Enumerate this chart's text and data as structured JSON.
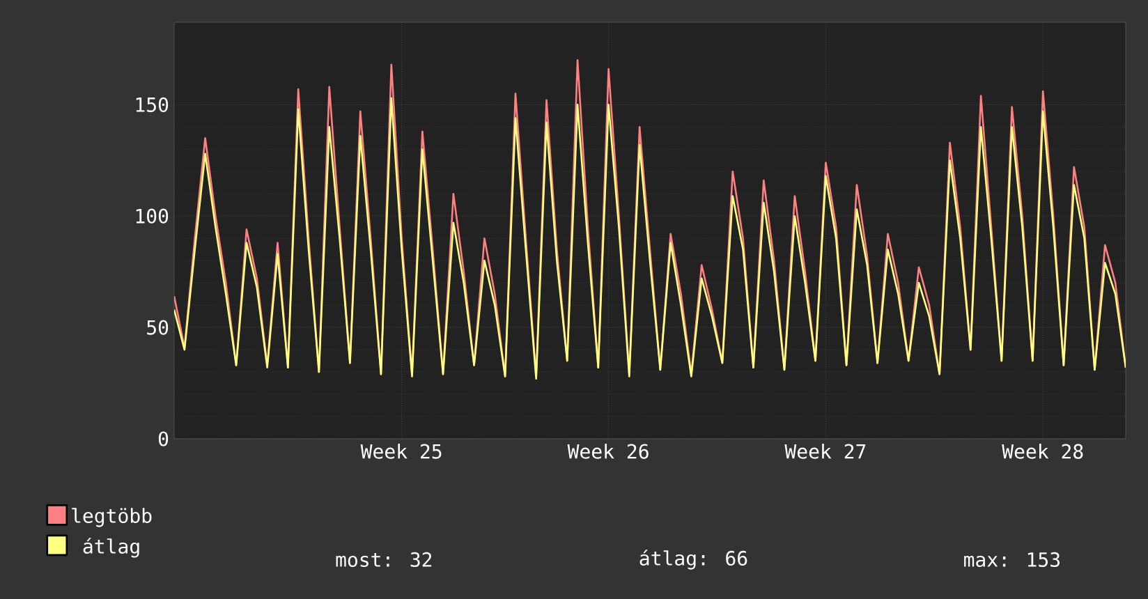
{
  "chart_data": {
    "type": "line",
    "categories": [
      null,
      null,
      null,
      null,
      null,
      null,
      null,
      null,
      null,
      null,
      null,
      null,
      null,
      null,
      null,
      null,
      null,
      null,
      null,
      null,
      null,
      null,
      "Week 25",
      null,
      null,
      null,
      null,
      null,
      null,
      null,
      null,
      null,
      null,
      null,
      null,
      null,
      null,
      null,
      null,
      null,
      null,
      null,
      "Week 26",
      null,
      null,
      null,
      null,
      null,
      null,
      null,
      null,
      null,
      null,
      null,
      null,
      null,
      null,
      null,
      null,
      null,
      null,
      null,
      null,
      "Week 27",
      null,
      null,
      null,
      null,
      null,
      null,
      null,
      null,
      null,
      null,
      null,
      null,
      null,
      null,
      null,
      null,
      null,
      null,
      null,
      null,
      "Week 28",
      null,
      null,
      null,
      null,
      null,
      null,
      null,
      null
    ],
    "series": [
      {
        "name": "legtöbb",
        "color": "#ff8080",
        "values": [
          64,
          41,
          90,
          135,
          100,
          70,
          33,
          94,
          72,
          33,
          88,
          32,
          157,
          90,
          30,
          158,
          95,
          34,
          147,
          90,
          29,
          168,
          90,
          29,
          138,
          85,
          29,
          110,
          75,
          33,
          90,
          65,
          28,
          155,
          90,
          28,
          152,
          85,
          35,
          170,
          95,
          32,
          166,
          100,
          29,
          140,
          85,
          31,
          92,
          65,
          29,
          78,
          58,
          34,
          120,
          90,
          32,
          116,
          80,
          31,
          109,
          75,
          35,
          124,
          95,
          33,
          114,
          82,
          34,
          92,
          70,
          35,
          77,
          60,
          29,
          133,
          95,
          40,
          154,
          95,
          35,
          149,
          100,
          35,
          156,
          100,
          33,
          122,
          95,
          31,
          87,
          70,
          32
        ]
      },
      {
        "name": "átlag",
        "color": "#ffff80",
        "values": [
          58,
          40,
          85,
          128,
          95,
          65,
          33,
          88,
          68,
          32,
          83,
          32,
          148,
          85,
          30,
          140,
          90,
          34,
          136,
          85,
          29,
          153,
          85,
          28,
          130,
          80,
          29,
          97,
          70,
          33,
          80,
          60,
          28,
          144,
          85,
          27,
          142,
          80,
          35,
          150,
          88,
          32,
          150,
          95,
          28,
          132,
          80,
          31,
          88,
          60,
          28,
          72,
          55,
          34,
          109,
          85,
          32,
          106,
          75,
          31,
          100,
          70,
          35,
          118,
          90,
          33,
          103,
          78,
          34,
          85,
          65,
          35,
          70,
          55,
          29,
          125,
          90,
          40,
          140,
          90,
          35,
          140,
          95,
          35,
          147,
          95,
          33,
          114,
          90,
          31,
          79,
          65,
          32
        ]
      }
    ],
    "ylim": [
      0,
      187
    ],
    "yticks": [
      0,
      50,
      100,
      150
    ],
    "grid": true,
    "legend": "bottom left",
    "annotations": [
      "most: 32",
      "átlag: 66",
      "max: 153"
    ]
  }
}
